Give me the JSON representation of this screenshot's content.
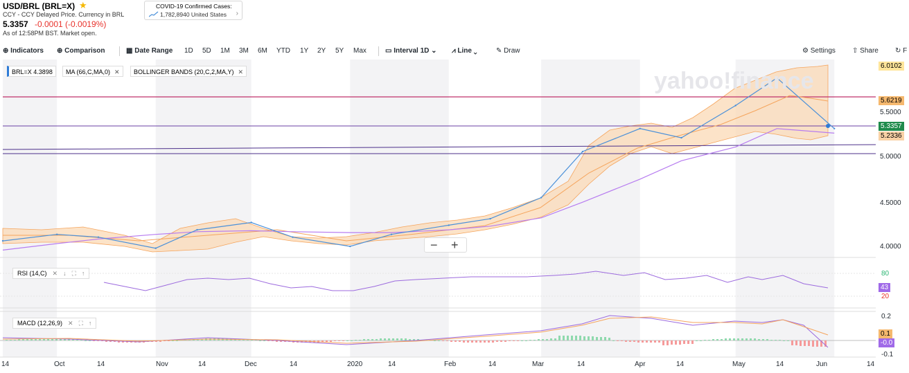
{
  "header": {
    "title": "USD/BRL (BRL=X)",
    "subtitle": "CCY - CCY Delayed Price. Currency in BRL",
    "price": "5.3357",
    "change": "-0.0001 (-0.0019%)",
    "as_of": "As of 12:58PM BST. Market open."
  },
  "covid": {
    "title": "COVID-19 Confirmed Cases:",
    "value": "1,782,8940",
    "region": "United States"
  },
  "toolbar": {
    "indicators": "Indicators",
    "comparison": "Comparison",
    "date_range": "Date Range",
    "ranges": [
      "1D",
      "5D",
      "1M",
      "3M",
      "6M",
      "YTD",
      "1Y",
      "2Y",
      "5Y",
      "Max"
    ],
    "interval_label": "Interval",
    "interval_value": "1D",
    "chart_type": "Line",
    "draw": "Draw",
    "settings": "Settings",
    "share": "Share",
    "extra": "F"
  },
  "chips": {
    "symbol": "BRL=X",
    "symbol_value": "4.3898",
    "ma": "MA (66,C,MA,0)",
    "bollinger": "BOLLINGER BANDS (20,C,2,MA,Y)"
  },
  "panels": {
    "rsi": "RSI (14,C)",
    "macd": "MACD (12,26,9)"
  },
  "watermark": "yahoo!finance",
  "price_axis": {
    "ticks": [
      "5.5000",
      "5.0000",
      "4.5000",
      "4.0000"
    ],
    "tags": {
      "top": "6.0102",
      "upper": "5.6219",
      "last": "5.3357",
      "lower": "5.2336"
    }
  },
  "rsi_axis": {
    "ticks": [
      "80",
      "20"
    ],
    "value": "43"
  },
  "macd_axis": {
    "ticks": [
      "0.2",
      "0.1",
      "-0.0",
      "-0.1"
    ]
  },
  "x_labels": [
    "14",
    "Oct",
    "14",
    "Nov",
    "14",
    "Dec",
    "14",
    "2020",
    "14",
    "Feb",
    "14",
    "Mar",
    "14",
    "Apr",
    "14",
    "May",
    "14",
    "Jun",
    "14"
  ],
  "colors": {
    "price": "#4a90d9",
    "ma": "#b77cf0",
    "band": "#f5a45c",
    "last": "#1f8b4c",
    "neg": "#e8322b"
  },
  "chart_data": {
    "type": "line",
    "x_range": [
      "2019-09-14",
      "2020-06-14"
    ],
    "ylim": [
      3.9,
      6.05
    ],
    "dates": [
      "2019-09-14",
      "2019-10-01",
      "2019-10-14",
      "2019-11-01",
      "2019-11-14",
      "2019-12-01",
      "2019-12-14",
      "2020-01-01",
      "2020-01-14",
      "2020-02-01",
      "2020-02-14",
      "2020-03-01",
      "2020-03-14",
      "2020-04-01",
      "2020-04-14",
      "2020-05-01",
      "2020-05-14",
      "2020-06-01"
    ],
    "series": [
      {
        "name": "BRL=X",
        "values": [
          4.08,
          4.15,
          4.12,
          4.0,
          4.2,
          4.28,
          4.12,
          4.02,
          4.15,
          4.25,
          4.32,
          4.55,
          5.05,
          5.3,
          5.2,
          5.55,
          5.85,
          5.3
        ]
      },
      {
        "name": "MA (66,C,MA,0)",
        "values": [
          3.98,
          4.05,
          4.1,
          4.15,
          4.18,
          4.19,
          4.18,
          4.17,
          4.17,
          4.2,
          4.24,
          4.33,
          4.5,
          4.75,
          4.95,
          5.1,
          5.3,
          5.25
        ]
      }
    ]
  }
}
